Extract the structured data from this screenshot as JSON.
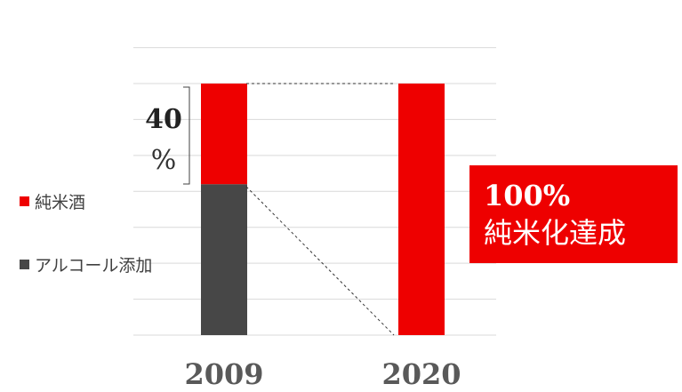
{
  "chart_data": {
    "type": "bar",
    "stacked": true,
    "categories": [
      "2009",
      "2020"
    ],
    "ylim": [
      0,
      100
    ],
    "grid": true,
    "series": [
      {
        "name": "アルコール添加",
        "values": [
          60,
          0
        ],
        "color": "#474747"
      },
      {
        "name": "純米酒",
        "values": [
          40,
          100
        ],
        "color": "#ee0000"
      }
    ],
    "legend_position": "left",
    "annotation": {
      "top_text": "40",
      "bottom_text": "%"
    },
    "callout": {
      "line1": "100%",
      "line2": "純米化達成",
      "color": "#ee0000"
    }
  }
}
